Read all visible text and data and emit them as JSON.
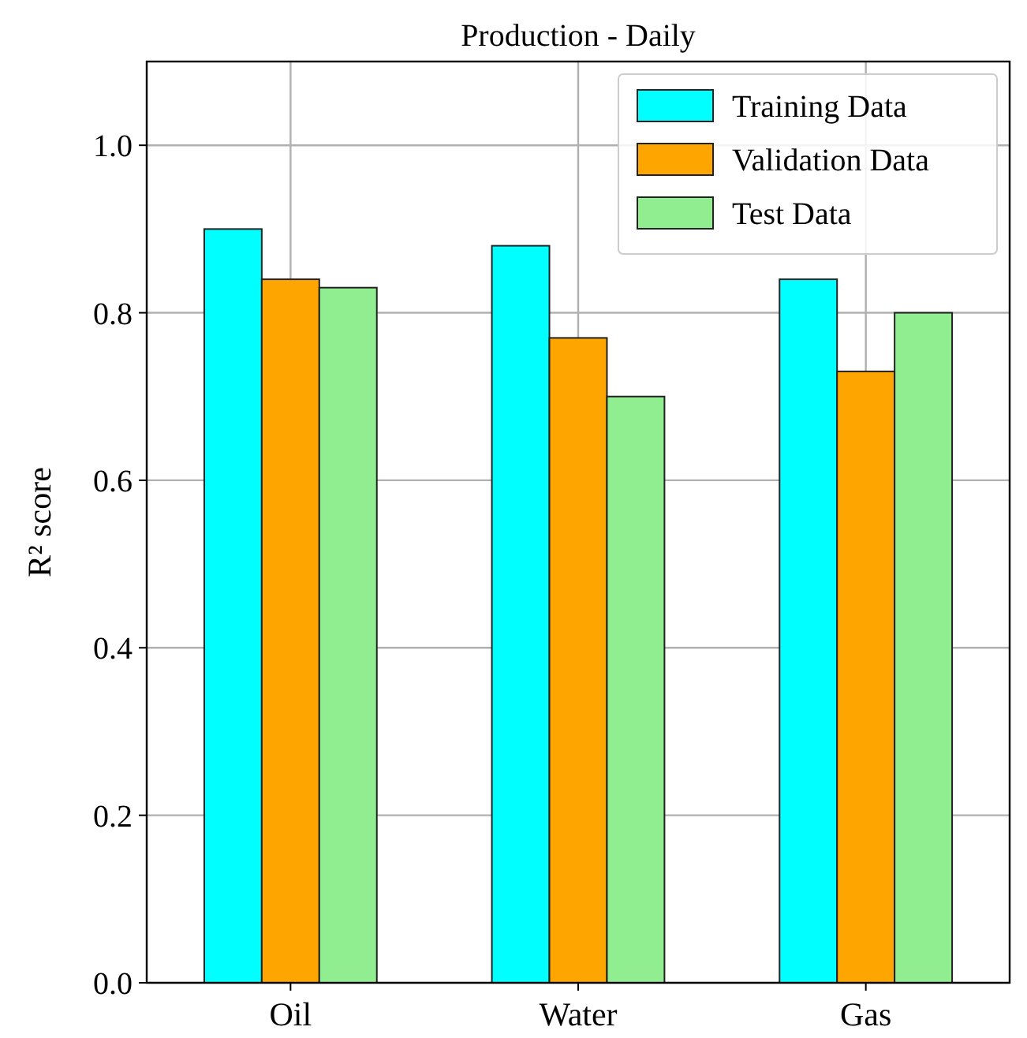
{
  "chart_data": {
    "type": "bar",
    "title": "Production - Daily",
    "ylabel": "R² score",
    "categories": [
      "Oil",
      "Water",
      "Gas"
    ],
    "series": [
      {
        "name": "Training Data",
        "color": "#00ffff",
        "values": [
          0.9,
          0.88,
          0.84
        ]
      },
      {
        "name": "Validation Data",
        "color": "#ffa500",
        "values": [
          0.84,
          0.77,
          0.73
        ]
      },
      {
        "name": "Test Data",
        "color": "#90ee90",
        "values": [
          0.83,
          0.7,
          0.8
        ]
      }
    ],
    "ylim": [
      0,
      1.1
    ],
    "yticks": [
      {
        "value": 0,
        "label": "0.0"
      },
      {
        "value": 0.2,
        "label": "0.2"
      },
      {
        "value": 0.4,
        "label": "0.4"
      },
      {
        "value": 0.6,
        "label": "0.6"
      },
      {
        "value": 0.8,
        "label": "0.8"
      },
      {
        "value": 1.0,
        "label": "1.0"
      }
    ],
    "grid": true,
    "legend": "top right"
  }
}
